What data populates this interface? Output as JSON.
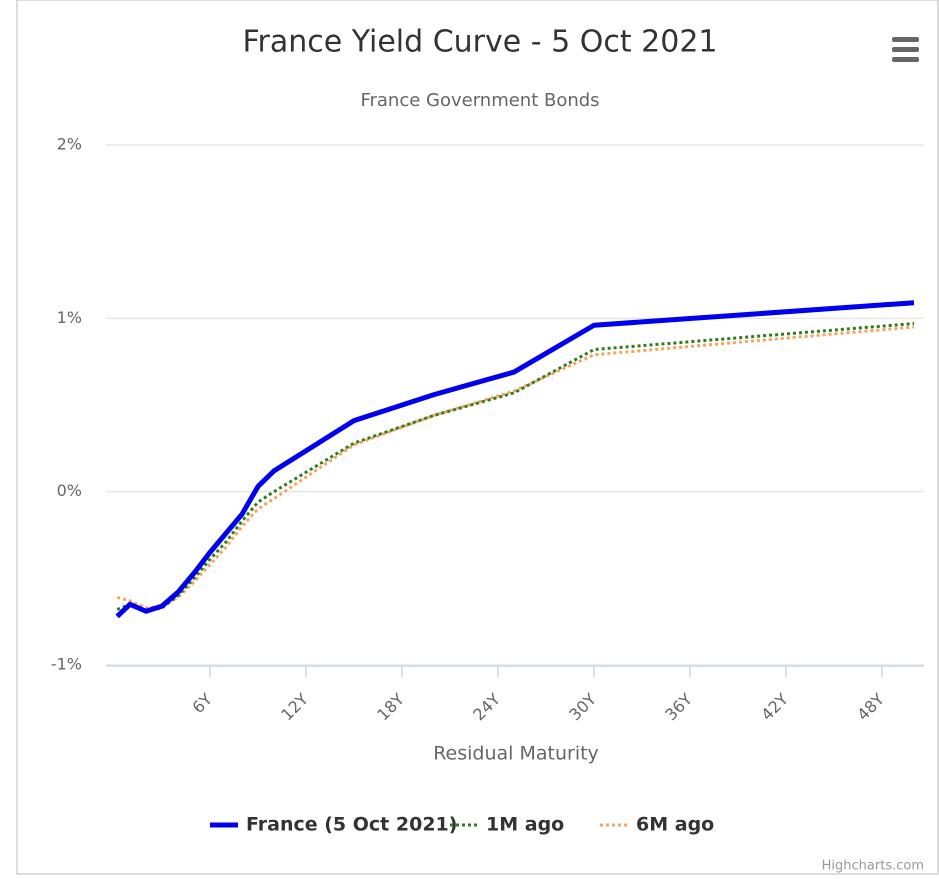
{
  "chart_data": {
    "type": "line",
    "title": "France Yield Curve - 5 Oct 2021",
    "subtitle": "France Government Bonds",
    "x_label": "Residual Maturity",
    "credit": "Highcharts.com",
    "x": [
      0.2,
      1,
      2,
      3,
      4,
      5,
      6,
      7,
      8,
      9,
      10,
      15,
      20,
      25,
      30,
      50
    ],
    "series": [
      {
        "name": "France (5 Oct 2021)",
        "color": "#0000ee",
        "width": 5,
        "dash": "solid",
        "values": [
          -0.72,
          -0.65,
          -0.69,
          -0.66,
          -0.58,
          -0.47,
          -0.35,
          -0.24,
          -0.13,
          0.03,
          0.12,
          0.41,
          0.56,
          0.69,
          0.96,
          1.09
        ]
      },
      {
        "name": "1M ago",
        "color": "#2e7d1e",
        "width": 3,
        "dash": "dot",
        "values": [
          -0.68,
          -0.65,
          -0.69,
          -0.67,
          -0.6,
          -0.5,
          -0.39,
          -0.29,
          -0.17,
          -0.06,
          0.0,
          0.28,
          0.44,
          0.57,
          0.82,
          0.97
        ]
      },
      {
        "name": "6M ago",
        "color": "#f7a35c",
        "width": 3,
        "dash": "dot",
        "values": [
          -0.61,
          -0.63,
          -0.67,
          -0.66,
          -0.61,
          -0.52,
          -0.42,
          -0.32,
          -0.2,
          -0.1,
          -0.04,
          0.27,
          0.44,
          0.58,
          0.79,
          0.95
        ]
      }
    ],
    "xlim": [
      0,
      50
    ],
    "xticks": [
      {
        "value": 6,
        "label": "6Y"
      },
      {
        "value": 12,
        "label": "12Y"
      },
      {
        "value": 18,
        "label": "18Y"
      },
      {
        "value": 24,
        "label": "24Y"
      },
      {
        "value": 30,
        "label": "30Y"
      },
      {
        "value": 36,
        "label": "36Y"
      },
      {
        "value": 42,
        "label": "42Y"
      },
      {
        "value": 48,
        "label": "48Y"
      }
    ],
    "ylim": [
      -1,
      2
    ],
    "yticks": [
      {
        "value": -1,
        "label": "-1%"
      },
      {
        "value": 0,
        "label": "0%"
      },
      {
        "value": 1,
        "label": "1%"
      },
      {
        "value": 2,
        "label": "2%"
      }
    ],
    "grid": true,
    "legend": "bottom"
  }
}
